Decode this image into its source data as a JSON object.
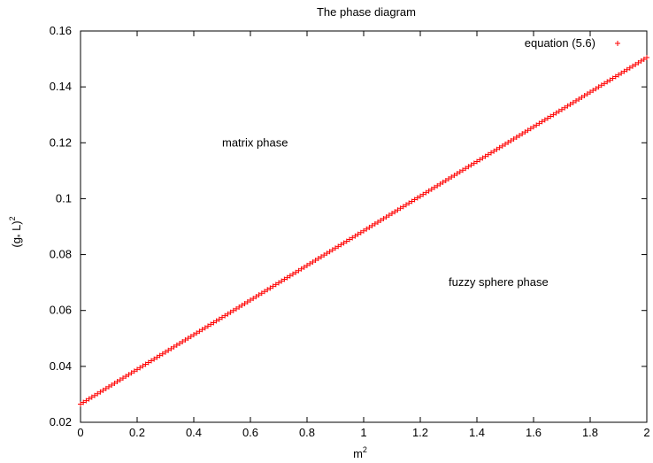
{
  "chart_data": {
    "type": "scatter",
    "title": "The phase diagram",
    "xlabel": "m",
    "xlabel_sup": "2",
    "ylabel": "(g",
    "ylabel_sub": "*",
    "ylabel_mid": " L)",
    "ylabel_sup": "2",
    "xlim": [
      0,
      2
    ],
    "ylim": [
      0.02,
      0.16
    ],
    "x_ticks": [
      {
        "value": 0,
        "label": "0"
      },
      {
        "value": 0.2,
        "label": "0.2"
      },
      {
        "value": 0.4,
        "label": "0.4"
      },
      {
        "value": 0.6,
        "label": "0.6"
      },
      {
        "value": 0.8,
        "label": "0.8"
      },
      {
        "value": 1.0,
        "label": "1"
      },
      {
        "value": 1.2,
        "label": "1.2"
      },
      {
        "value": 1.4,
        "label": "1.4"
      },
      {
        "value": 1.6,
        "label": "1.6"
      },
      {
        "value": 1.8,
        "label": "1.8"
      },
      {
        "value": 2.0,
        "label": "2"
      }
    ],
    "y_ticks": [
      {
        "value": 0.02,
        "label": "0.02"
      },
      {
        "value": 0.04,
        "label": "0.04"
      },
      {
        "value": 0.06,
        "label": "0.06"
      },
      {
        "value": 0.08,
        "label": "0.08"
      },
      {
        "value": 0.1,
        "label": "0.1"
      },
      {
        "value": 0.12,
        "label": "0.12"
      },
      {
        "value": 0.14,
        "label": "0.14"
      },
      {
        "value": 0.16,
        "label": "0.16"
      }
    ],
    "grid": false,
    "legend_position": "top-right",
    "series": [
      {
        "name": "equation (5.6)",
        "color": "#ff0000",
        "marker": "plus",
        "x_start": 0,
        "x_end": 2,
        "point_count": 201,
        "y_at_x_start": 0.0265,
        "y_at_x_end": 0.1505
      }
    ],
    "annotations": [
      {
        "text": "matrix phase",
        "x": 0.5,
        "y": 0.12
      },
      {
        "text": "fuzzy sphere phase",
        "x": 1.3,
        "y": 0.07
      }
    ]
  }
}
